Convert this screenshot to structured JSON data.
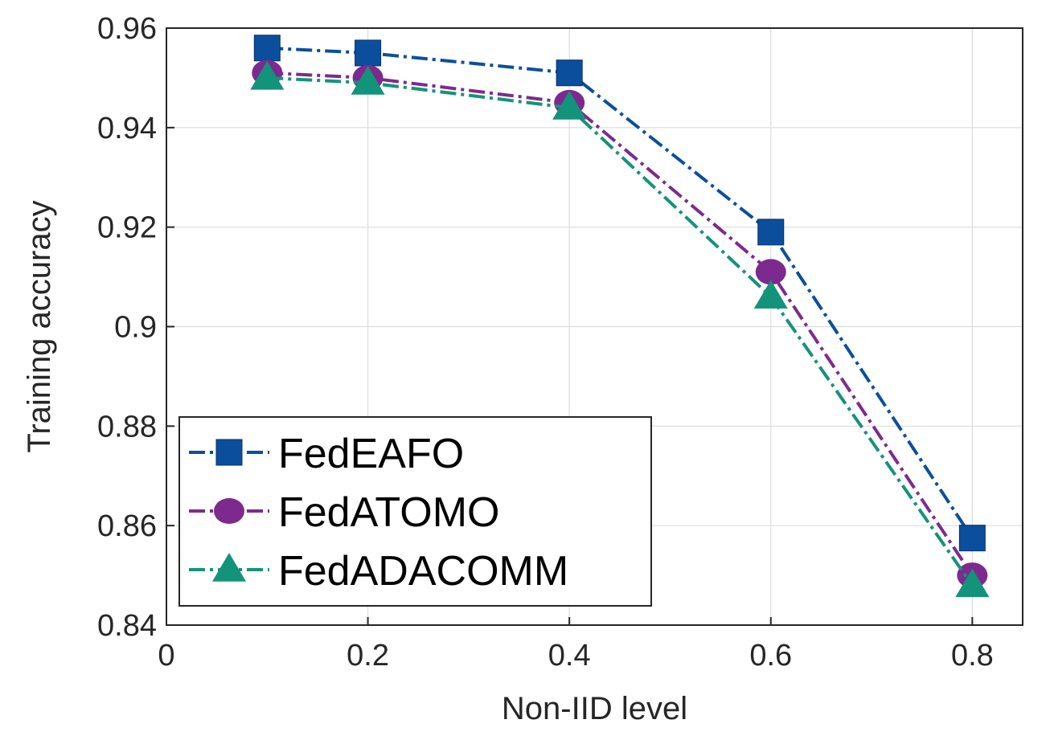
{
  "chart_data": {
    "type": "line",
    "title": "",
    "xlabel": "Non-IID level",
    "ylabel": "Training accuracy",
    "xlim": [
      0,
      0.85
    ],
    "ylim": [
      0.84,
      0.96
    ],
    "xticks": [
      0,
      0.2,
      0.4,
      0.6,
      0.8
    ],
    "xtick_labels": [
      "0",
      "0.2",
      "0.4",
      "0.6",
      "0.8"
    ],
    "yticks": [
      0.84,
      0.86,
      0.88,
      0.9,
      0.92,
      0.94,
      0.96
    ],
    "ytick_labels": [
      "0.84",
      "0.86",
      "0.88",
      "0.9",
      "0.92",
      "0.94",
      "0.96"
    ],
    "grid": true,
    "legend_position": "bottom-left",
    "x": [
      0.1,
      0.2,
      0.4,
      0.6,
      0.8
    ],
    "series": [
      {
        "name": "FedEAFO",
        "values": [
          0.956,
          0.955,
          0.951,
          0.919,
          0.8575
        ],
        "color": "#0b4f9c",
        "marker": "square"
      },
      {
        "name": "FedATOMO",
        "values": [
          0.951,
          0.95,
          0.945,
          0.911,
          0.85
        ],
        "color": "#7d2a8e",
        "marker": "circle"
      },
      {
        "name": "FedADACOMM",
        "values": [
          0.95,
          0.949,
          0.944,
          0.906,
          0.848
        ],
        "color": "#13937a",
        "marker": "triangle"
      }
    ]
  }
}
